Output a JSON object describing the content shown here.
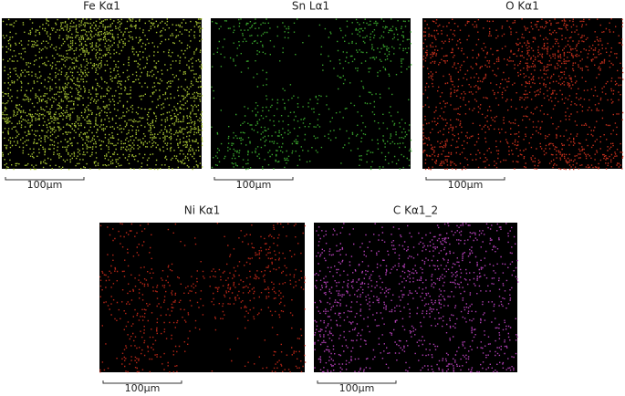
{
  "panels": [
    {
      "title": "Fe Kα1",
      "scale_label": "100µm",
      "color": "#b8d838"
    },
    {
      "title": "Sn Lα1",
      "scale_label": "100µm",
      "color": "#3fb632"
    },
    {
      "title": "O Kα1",
      "scale_label": "100µm",
      "color": "#d8341f"
    },
    {
      "title": "Ni Kα1",
      "scale_label": "100µm",
      "color": "#cc2a1a"
    },
    {
      "title": "C Kα1_2",
      "scale_label": "100µm",
      "color": "#c446c8"
    }
  ]
}
